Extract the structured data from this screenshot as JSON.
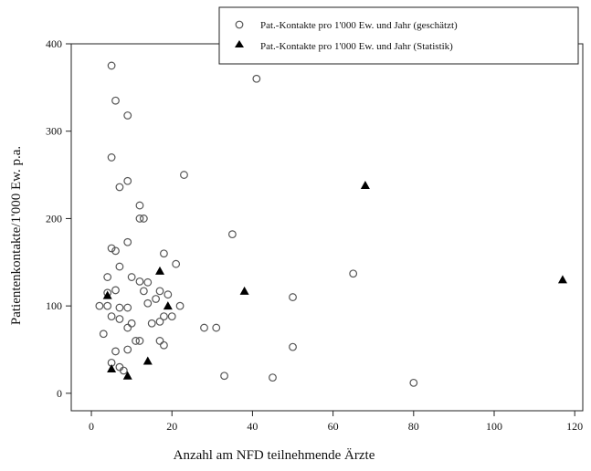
{
  "chart_data": {
    "type": "scatter",
    "xlabel": "Anzahl am NFD teilnehmende Ärzte",
    "ylabel": "Patientenkontakte/1'000 Ew. p.a.",
    "xlim": [
      -5,
      122
    ],
    "ylim": [
      -20,
      400
    ],
    "xticks": [
      0,
      20,
      40,
      60,
      80,
      100,
      120
    ],
    "yticks": [
      0,
      100,
      200,
      300,
      400
    ],
    "grid": false,
    "legend_position": "top-right",
    "series": [
      {
        "name": "Pat.-Kontakte pro 1'000 Ew. und Jahr (geschätzt)",
        "marker": "open-circle",
        "color": "#555555",
        "points": [
          [
            5,
            375
          ],
          [
            6,
            335
          ],
          [
            9,
            318
          ],
          [
            5,
            270
          ],
          [
            9,
            243
          ],
          [
            7,
            236
          ],
          [
            12,
            215
          ],
          [
            12,
            200
          ],
          [
            13,
            200
          ],
          [
            9,
            173
          ],
          [
            5,
            166
          ],
          [
            6,
            163
          ],
          [
            18,
            160
          ],
          [
            7,
            145
          ],
          [
            21,
            148
          ],
          [
            4,
            133
          ],
          [
            10,
            133
          ],
          [
            12,
            128
          ],
          [
            14,
            127
          ],
          [
            4,
            115
          ],
          [
            6,
            118
          ],
          [
            13,
            117
          ],
          [
            17,
            117
          ],
          [
            19,
            113
          ],
          [
            2,
            100
          ],
          [
            4,
            100
          ],
          [
            7,
            98
          ],
          [
            9,
            98
          ],
          [
            14,
            103
          ],
          [
            16,
            108
          ],
          [
            22,
            100
          ],
          [
            5,
            88
          ],
          [
            7,
            85
          ],
          [
            10,
            80
          ],
          [
            15,
            80
          ],
          [
            17,
            82
          ],
          [
            18,
            88
          ],
          [
            20,
            88
          ],
          [
            9,
            75
          ],
          [
            3,
            68
          ],
          [
            11,
            60
          ],
          [
            12,
            60
          ],
          [
            17,
            60
          ],
          [
            18,
            55
          ],
          [
            6,
            48
          ],
          [
            9,
            50
          ],
          [
            5,
            35
          ],
          [
            7,
            30
          ],
          [
            8,
            26
          ],
          [
            23,
            250
          ],
          [
            28,
            75
          ],
          [
            31,
            75
          ],
          [
            33,
            20
          ],
          [
            35,
            182
          ],
          [
            41,
            360
          ],
          [
            45,
            18
          ],
          [
            50,
            110
          ],
          [
            50,
            53
          ],
          [
            65,
            137
          ],
          [
            80,
            12
          ]
        ]
      },
      {
        "name": "Pat.-Kontakte pro 1'000 Ew. und Jahr (Statistik)",
        "marker": "filled-triangle",
        "color": "#000000",
        "points": [
          [
            4,
            112
          ],
          [
            5,
            28
          ],
          [
            9,
            20
          ],
          [
            14,
            37
          ],
          [
            17,
            140
          ],
          [
            19,
            100
          ],
          [
            38,
            117
          ],
          [
            68,
            238
          ],
          [
            117,
            130
          ]
        ]
      }
    ]
  }
}
